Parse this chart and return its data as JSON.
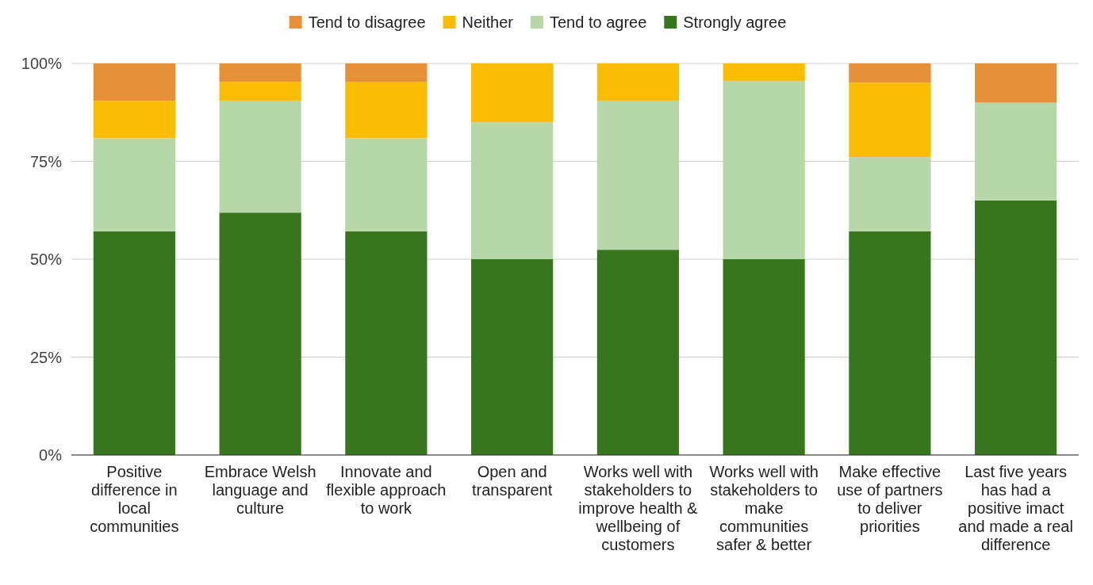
{
  "chart_data": {
    "type": "bar",
    "stacked": true,
    "legend": "top",
    "grid": "y",
    "categories": [
      "Positive difference in local communities",
      "Embrace Welsh language and culture",
      "Innovate and flexible approach to work",
      "Open and transparent",
      "Works well with stakeholders to improve health & wellbeing of customers",
      "Works well with stakeholders to make communities safer & better",
      "Make effective use of partners to deliver priorities",
      "Last five years has had a positive imact and made a real difference"
    ],
    "series": [
      {
        "name": "Strongly agree",
        "color": "#38761d",
        "values": [
          57.1,
          61.9,
          57.1,
          50,
          52.4,
          50,
          57.1,
          65
        ]
      },
      {
        "name": "Tend to agree",
        "color": "#b6d7a8",
        "values": [
          23.8,
          28.6,
          23.8,
          35,
          38.1,
          45.5,
          19.0,
          25
        ]
      },
      {
        "name": "Neither",
        "color": "#fbbc04",
        "values": [
          9.5,
          4.8,
          14.3,
          15,
          9.5,
          4.5,
          19.0,
          0
        ]
      },
      {
        "name": "Tend to disagree",
        "color": "#e69138",
        "values": [
          9.6,
          4.7,
          4.8,
          0,
          0,
          0,
          4.9,
          10
        ]
      }
    ],
    "ylim": [
      0,
      100
    ],
    "yticks": [
      {
        "value": 0,
        "label": "0%"
      },
      {
        "value": 25,
        "label": "25%"
      },
      {
        "value": 50,
        "label": "50%"
      },
      {
        "value": 75,
        "label": "75%"
      },
      {
        "value": 100,
        "label": "100%"
      }
    ]
  }
}
